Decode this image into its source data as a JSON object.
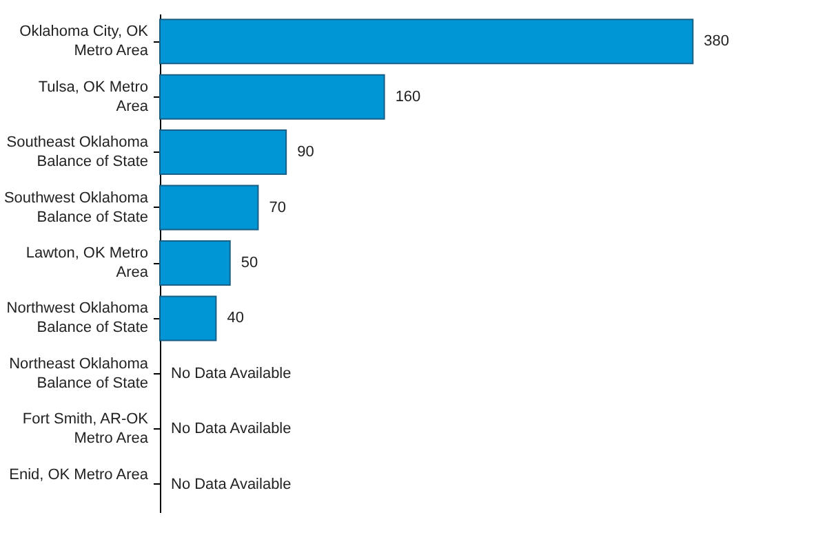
{
  "chart_data": {
    "type": "bar",
    "orientation": "horizontal",
    "categories": [
      "Oklahoma City, OK\nMetro Area",
      "Tulsa, OK Metro\nArea",
      "Southeast Oklahoma\nBalance of State",
      "Southwest Oklahoma\nBalance of State",
      "Lawton, OK Metro\nArea",
      "Northwest Oklahoma\nBalance of State",
      "Northeast Oklahoma\nBalance of State",
      "Fort Smith, AR-OK\nMetro Area",
      "Enid, OK Metro Area"
    ],
    "values": [
      380,
      160,
      90,
      70,
      50,
      40,
      null,
      null,
      null
    ],
    "value_labels": [
      "380",
      "160",
      "90",
      "70",
      "50",
      "40",
      "No Data Available",
      "No Data Available",
      "No Data Available"
    ],
    "color": "#0096d6",
    "xlim": [
      0,
      455
    ],
    "tick_labels": "y",
    "grid": false
  }
}
